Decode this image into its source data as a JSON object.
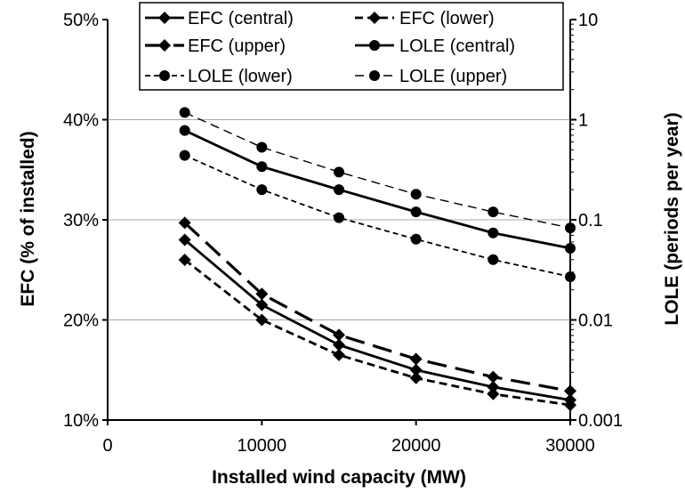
{
  "chart_data": {
    "type": "line",
    "x": [
      5000,
      10000,
      15000,
      20000,
      25000,
      30000
    ],
    "xlabel": "Installed wind capacity (MW)",
    "ylabel_left": "EFC (% of installed)",
    "ylabel_right": "LOLE (periods per year)",
    "xlim": [
      0,
      30000
    ],
    "ylim_left": [
      10,
      50
    ],
    "ylim_right": [
      0.001,
      10
    ],
    "right_scale": "log",
    "x_ticks": [
      "0",
      "10000",
      "20000",
      "30000"
    ],
    "y_ticks_left": [
      "10%",
      "20%",
      "30%",
      "40%",
      "50%"
    ],
    "y_ticks_right": [
      "0.001",
      "0.01",
      "0.1",
      "1",
      "10"
    ],
    "grid": "horizontal",
    "legend_position": "top",
    "series": [
      {
        "name": "EFC (central)",
        "axis": "left",
        "style": "solid",
        "marker": "diamond",
        "values": [
          28.0,
          21.5,
          17.5,
          15.0,
          13.3,
          12.0
        ]
      },
      {
        "name": "EFC (lower)",
        "axis": "left",
        "style": "dashed",
        "marker": "diamond",
        "values": [
          26.0,
          20.0,
          16.5,
          14.2,
          12.6,
          11.5
        ]
      },
      {
        "name": "EFC (upper)",
        "axis": "left",
        "style": "longdash",
        "marker": "diamond",
        "values": [
          29.7,
          22.6,
          18.5,
          16.1,
          14.3,
          12.9
        ]
      },
      {
        "name": "LOLE (central)",
        "axis": "right",
        "style": "solid",
        "marker": "circle",
        "values": [
          0.78,
          0.34,
          0.2,
          0.12,
          0.074,
          0.052
        ]
      },
      {
        "name": "LOLE (lower)",
        "axis": "right",
        "style": "shortdash",
        "marker": "circle",
        "values": [
          0.44,
          0.2,
          0.105,
          0.064,
          0.04,
          0.027
        ]
      },
      {
        "name": "LOLE (upper)",
        "axis": "right",
        "style": "thindash",
        "marker": "circle",
        "values": [
          1.18,
          0.53,
          0.3,
          0.18,
          0.12,
          0.083
        ]
      }
    ]
  }
}
